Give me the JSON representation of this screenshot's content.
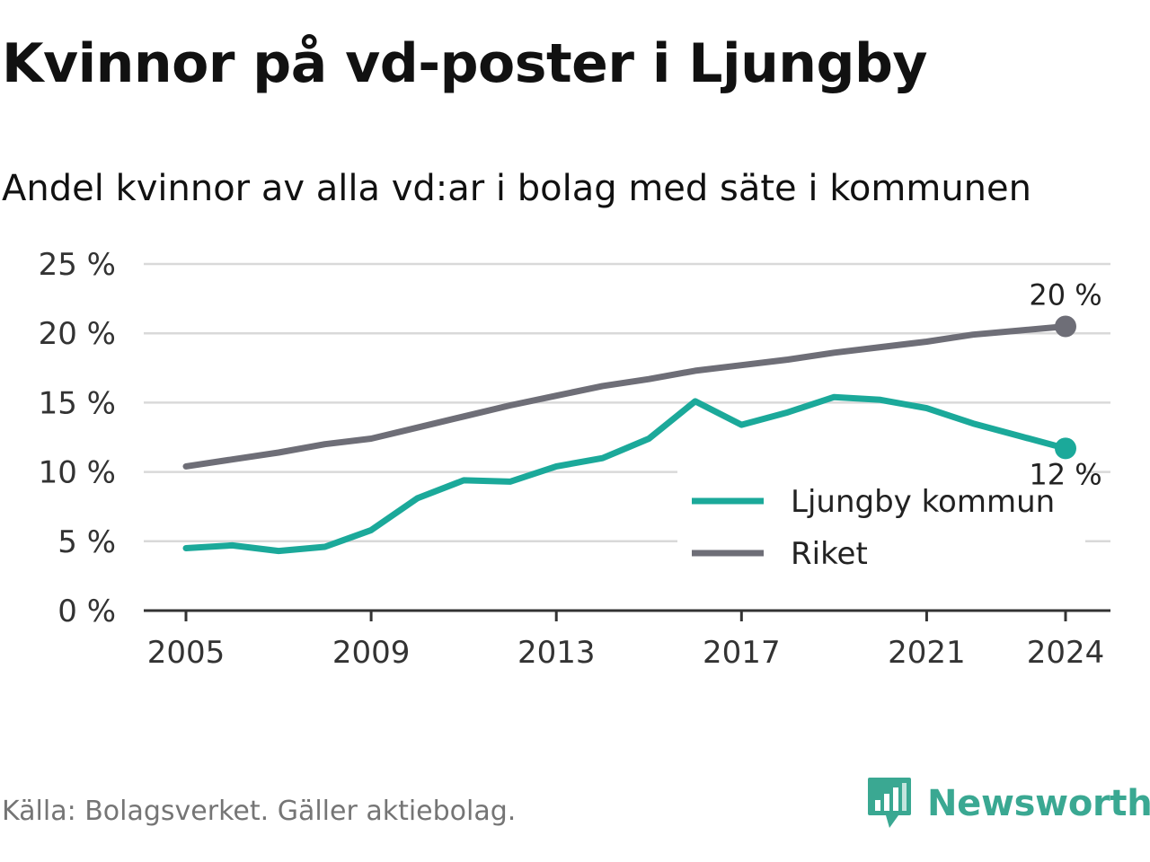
{
  "title": "Kvinnor på vd-poster i Ljungby",
  "subtitle": "Andel kvinnor av alla vd:ar i bolag med säte i kommunen",
  "source": "Källa: Bolagsverket. Gäller aktiebolag.",
  "brand": {
    "name": "Newsworthy",
    "icon": "newsworthy-logo-icon",
    "color": "#3aa892"
  },
  "chart_data": {
    "type": "line",
    "x": [
      2005,
      2006,
      2007,
      2008,
      2009,
      2010,
      2011,
      2012,
      2013,
      2014,
      2015,
      2016,
      2017,
      2018,
      2019,
      2020,
      2021,
      2022,
      2023,
      2024
    ],
    "series": [
      {
        "name": "Ljungby kommun",
        "color": "#1ba99a",
        "values": [
          4.5,
          4.7,
          4.3,
          4.6,
          5.8,
          8.1,
          9.4,
          9.3,
          10.4,
          11.0,
          12.4,
          15.1,
          13.4,
          14.3,
          15.4,
          15.2,
          14.6,
          13.5,
          12.6,
          11.7
        ],
        "end_label": "12 %"
      },
      {
        "name": "Riket",
        "color": "#6e6e77",
        "values": [
          10.4,
          10.9,
          11.4,
          12.0,
          12.4,
          13.2,
          14.0,
          14.8,
          15.5,
          16.2,
          16.7,
          17.3,
          17.7,
          18.1,
          18.6,
          19.0,
          19.4,
          19.9,
          20.2,
          20.5
        ],
        "end_label": "20 %"
      }
    ],
    "x_ticks": [
      "2005",
      "2009",
      "2013",
      "2017",
      "2021",
      "2024"
    ],
    "y_ticks": [
      "0 %",
      "5 %",
      "10 %",
      "15 %",
      "20 %",
      "25 %"
    ],
    "ylim": [
      0,
      25
    ],
    "grid": true,
    "legend_position": "bottom-right"
  }
}
